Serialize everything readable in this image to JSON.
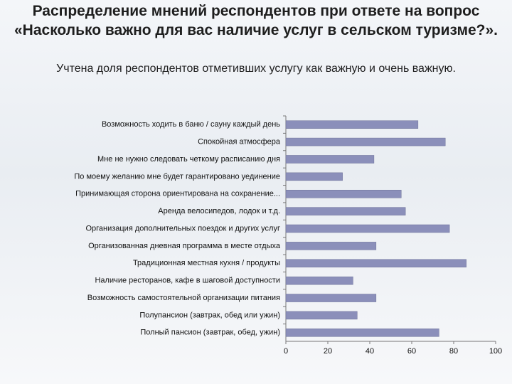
{
  "chart_data": {
    "type": "barh",
    "title": "Распределение мнений респондентов при ответе на вопрос «Насколько важно для вас наличие услуг в сельском туризме?».",
    "subtitle": "Учтена доля респондентов отметивших услугу как важную и очень важную.",
    "categories": [
      "Возможность ходить в баню / сауну каждый день",
      "Спокойная атмосфера",
      "Мне не нужно следовать четкому расписанию дня",
      "По моему желанию мне будет гарантировано уединение",
      "Принимающая сторона ориентирована на сохранение...",
      "Аренда велосипедов, лодок и т.д.",
      "Организация дополнительных поездок и других услуг",
      "Организованная дневная программа в месте отдыха",
      "Традиционная местная кухня / продукты",
      "Наличие ресторанов, кафе в шаговой доступности",
      "Возможность самостоятельной организации питания",
      "Полупансион (завтрак, обед или ужин)",
      "Полный пансион (завтрак, обед, ужин)"
    ],
    "values": [
      63,
      76,
      42,
      27,
      55,
      57,
      78,
      43,
      86,
      32,
      43,
      34,
      73
    ],
    "color": "#8b8fba",
    "xlim": [
      0,
      100
    ],
    "xticks": [
      0,
      20,
      40,
      60,
      80,
      100
    ]
  }
}
